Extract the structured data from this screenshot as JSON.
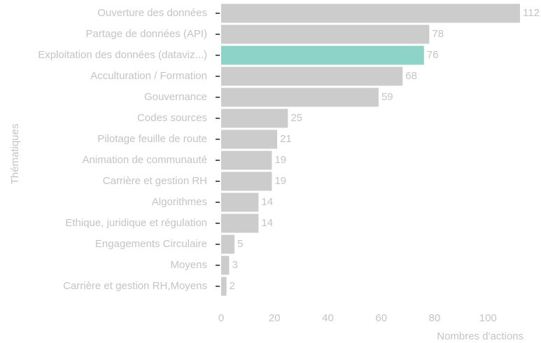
{
  "chart_data": {
    "type": "barh",
    "categories": [
      "Ouverture des données",
      "Partage de données (API)",
      "Exploitation des données (dataviz...)",
      "Acculturation / Formation",
      "Gouvernance",
      "Codes sources",
      "Pilotage feuille de route",
      "Animation de communauté",
      "Carrière et gestion RH",
      "Algorithmes",
      "Ethique, juridique et régulation",
      "Engagements Circulaire",
      "Moyens",
      "Carrière et gestion RH,Moyens"
    ],
    "values": [
      112,
      78,
      76,
      68,
      59,
      25,
      21,
      19,
      19,
      14,
      14,
      5,
      3,
      2
    ],
    "colors": [
      "#cccccc",
      "#cccccc",
      "#8dd3c7",
      "#cccccc",
      "#cccccc",
      "#cccccc",
      "#cccccc",
      "#cccccc",
      "#cccccc",
      "#cccccc",
      "#cccccc",
      "#cccccc",
      "#cccccc",
      "#cccccc"
    ],
    "xlabel": "Nombres d'actions",
    "ylabel": "Thématiques",
    "xlim": [
      0,
      112
    ],
    "xticks": [
      0,
      20,
      40,
      60,
      80,
      100
    ],
    "grid": false
  }
}
